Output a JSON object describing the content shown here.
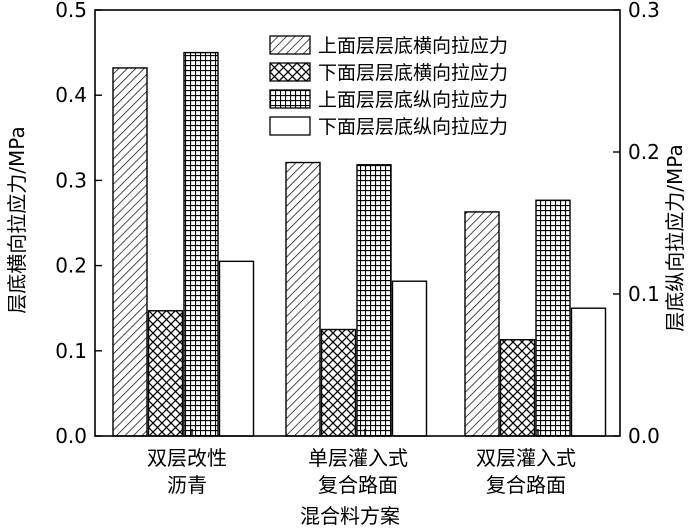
{
  "chart_data": {
    "type": "bar",
    "categories": [
      [
        "双层改性",
        "沥青"
      ],
      [
        "单层灌入式",
        "复合路面"
      ],
      [
        "双层灌入式",
        "复合路面"
      ]
    ],
    "xlabel": "混合料方案",
    "ylabel_left": "层底横向拉应力/MPa",
    "ylabel_right": "层底纵向拉应力/MPa",
    "ylim_left": [
      0,
      0.5
    ],
    "ylim_right": [
      0,
      0.3
    ],
    "yticks_left": [
      "0.0",
      "0.1",
      "0.2",
      "0.3",
      "0.4",
      "0.5"
    ],
    "yticks_right": [
      "0.0",
      "0.1",
      "0.2",
      "0.3"
    ],
    "grid": false,
    "legend_position": "top-right",
    "series": [
      {
        "name": "上面层层底横向拉应力",
        "axis": "left",
        "pattern": "diagonal",
        "values": [
          0.432,
          0.321,
          0.263
        ]
      },
      {
        "name": "下面层层底横向拉应力",
        "axis": "left",
        "pattern": "crosshatch",
        "values": [
          0.147,
          0.125,
          0.113
        ]
      },
      {
        "name": "上面层层底纵向拉应力",
        "axis": "right",
        "pattern": "grid",
        "values": [
          0.27,
          0.191,
          0.166
        ]
      },
      {
        "name": "下面层层底纵向拉应力",
        "axis": "right",
        "pattern": "empty",
        "values": [
          0.123,
          0.109,
          0.09
        ]
      }
    ]
  }
}
